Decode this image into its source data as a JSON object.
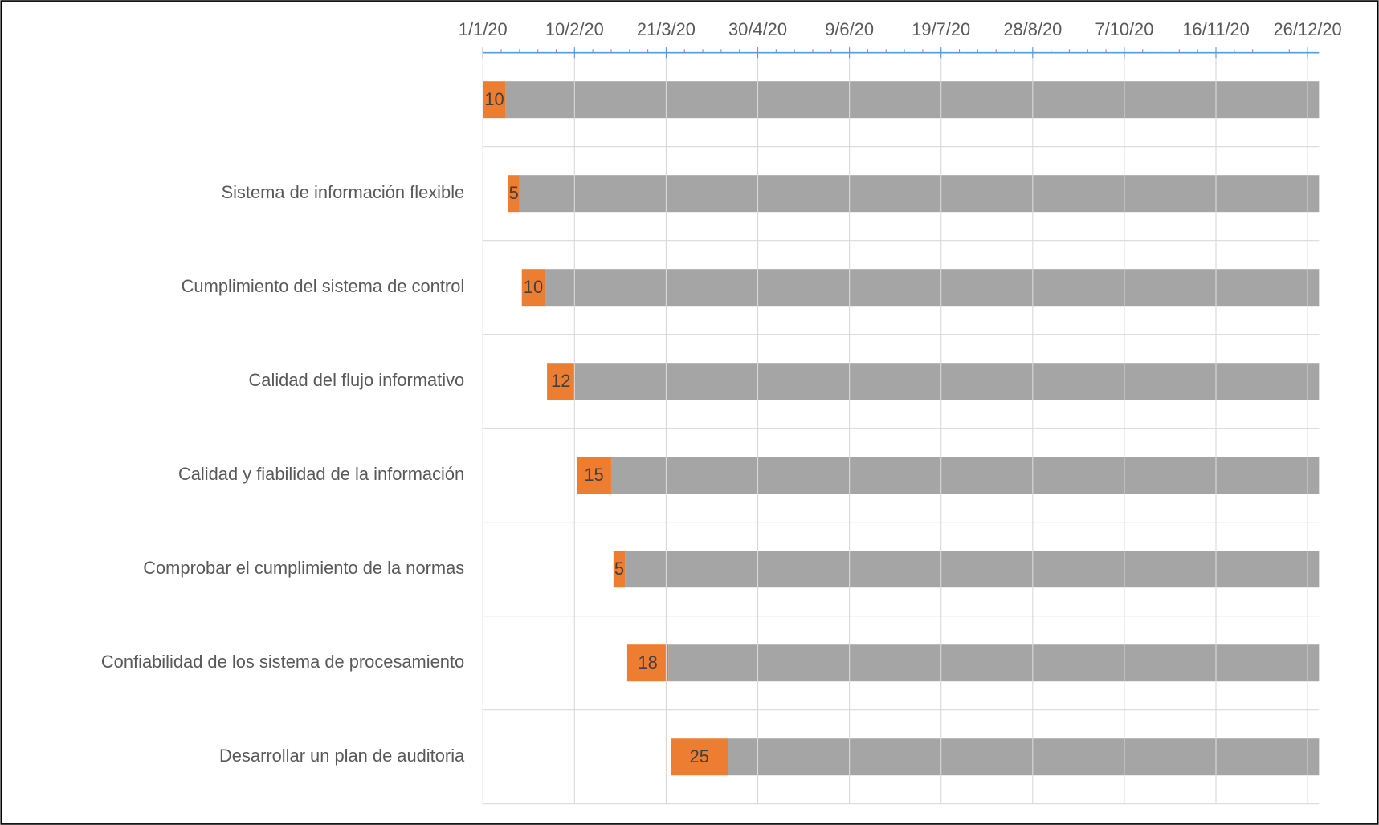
{
  "chart_data": {
    "type": "gantt",
    "categories": [
      null,
      "Sistema de información flexible",
      "Cumplimiento del sistema de control",
      "Calidad del flujo informativo",
      "Calidad y fiabilidad de la información",
      "Comprobar el cumplimiento de la normas",
      "Confiabilidad de los sistema de procesamiento",
      "Desarrollar un plan de auditoria"
    ],
    "start": [
      "2020-01-01",
      "2020-01-12",
      "2020-01-18",
      "2020-01-29",
      "2020-02-11",
      "2020-02-27",
      "2020-03-04",
      "2020-03-23"
    ],
    "series": [
      {
        "color": "#ed7d31",
        "values": [
          10,
          5,
          10,
          12,
          15,
          5,
          18,
          25
        ]
      },
      {
        "color": "#a5a5a5",
        "values": [
          365,
          365,
          365,
          365,
          365,
          365,
          365,
          365
        ]
      }
    ],
    "xlim": [
      "2020-01-01",
      "2020-12-31"
    ],
    "xticks": [
      {
        "value": "2020-01-01",
        "label": "1/1/20"
      },
      {
        "value": "2020-02-10",
        "label": "10/2/20"
      },
      {
        "value": "2020-03-21",
        "label": "21/3/20"
      },
      {
        "value": "2020-04-30",
        "label": "30/4/20"
      },
      {
        "value": "2020-06-09",
        "label": "9/6/20"
      },
      {
        "value": "2020-07-19",
        "label": "19/7/20"
      },
      {
        "value": "2020-08-28",
        "label": "28/8/20"
      },
      {
        "value": "2020-10-07",
        "label": "7/10/20"
      },
      {
        "value": "2020-11-16",
        "label": "16/11/20"
      },
      {
        "value": "2020-12-26",
        "label": "26/12/20"
      }
    ],
    "grid": true
  }
}
